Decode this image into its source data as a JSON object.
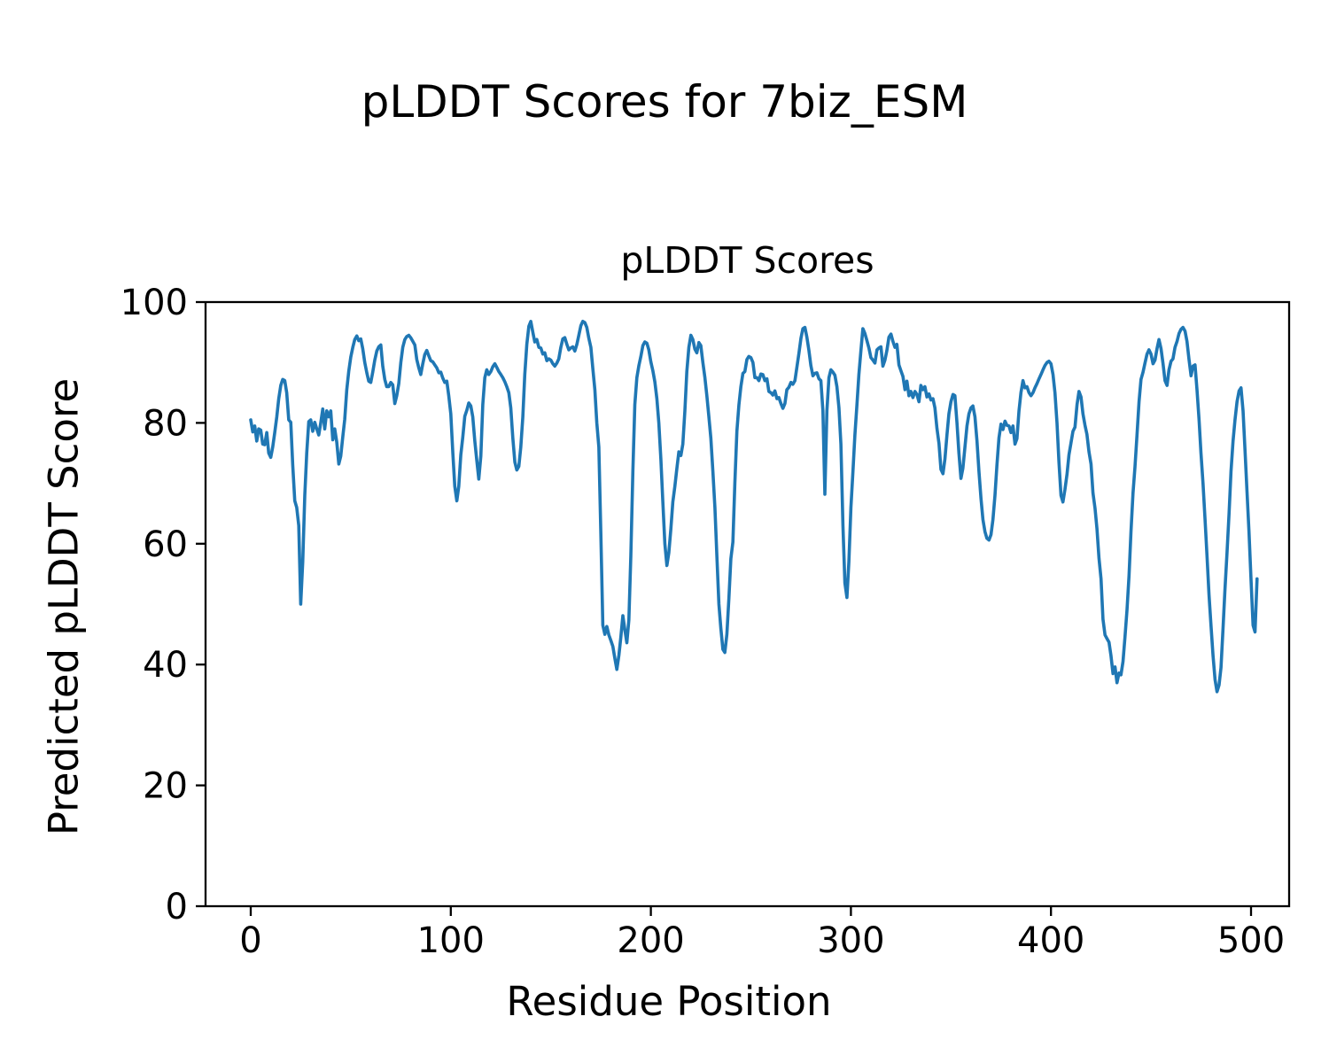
{
  "figure": {
    "suptitle": "pLDDT Scores for 7biz_ESM",
    "axes_title": "pLDDT Scores",
    "xlabel": "Residue Position",
    "ylabel": "Predicted pLDDT Score"
  },
  "colors": {
    "line": "#1f77b4",
    "spine": "#000000",
    "text": "#000000",
    "background": "#ffffff"
  },
  "chart_data": {
    "type": "line",
    "title": "pLDDT Scores",
    "suptitle": "pLDDT Scores for 7biz_ESM",
    "xlabel": "Residue Position",
    "ylabel": "Predicted pLDDT Score",
    "x_ticks": [
      0,
      100,
      200,
      300,
      400,
      500
    ],
    "y_ticks": [
      0,
      20,
      40,
      60,
      80,
      100
    ],
    "ylim": [
      0,
      100
    ],
    "xlim": [
      -23,
      519
    ],
    "grid": false,
    "legend": false,
    "x_start": 0,
    "x_step": 1,
    "series": [
      {
        "name": "pLDDT",
        "color": "#1f77b4",
        "values": [
          80.5,
          78.5,
          79.5,
          77,
          79,
          78.8,
          76.5,
          76.4,
          78.4,
          75,
          74.3,
          76,
          78.4,
          81,
          84,
          86.2,
          87.2,
          87,
          85,
          80.5,
          80.1,
          73,
          67.1,
          66,
          63,
          50,
          57,
          68,
          75,
          80.2,
          80.5,
          78.6,
          80.1,
          79,
          78,
          80,
          82.3,
          79,
          82,
          81,
          82,
          77.2,
          79,
          76.8,
          73.2,
          74.5,
          77.7,
          80.6,
          85.5,
          88.5,
          90.9,
          92.5,
          93.8,
          94.4,
          93.6,
          93.9,
          92.3,
          90,
          88.3,
          86.9,
          86.7,
          88.4,
          90.4,
          91.9,
          92.6,
          92.9,
          89.4,
          87.2,
          86,
          86,
          86.7,
          86.3,
          83.2,
          84.5,
          86.5,
          90,
          92.5,
          93.8,
          94.3,
          94.5,
          94.1,
          93.5,
          92.9,
          90.5,
          89.1,
          88,
          89.8,
          91.3,
          92,
          91.1,
          90.3,
          90.1,
          89.6,
          89.1,
          88.3,
          88.4,
          87.4,
          86.7,
          86.9,
          84.5,
          81.5,
          75,
          69.5,
          67.1,
          69.5,
          74.7,
          77.6,
          81.1,
          82.1,
          83.3,
          82.8,
          81,
          77,
          73.7,
          70.7,
          74.5,
          83,
          87.5,
          88.8,
          88,
          88.5,
          89.3,
          89.8,
          89.2,
          88.5,
          88,
          87.5,
          86.8,
          86,
          85,
          82.5,
          77.5,
          73.5,
          72.2,
          72.8,
          76,
          81,
          88,
          93,
          96,
          96.8,
          95,
          93.4,
          93.8,
          92.5,
          92.4,
          91.4,
          91.6,
          90.3,
          90.6,
          90.4,
          89.8,
          89.4,
          89.9,
          90.6,
          92.5,
          93.9,
          94.1,
          93,
          92.1,
          92.4,
          92.6,
          91.9,
          93,
          94.5,
          96.1,
          96.8,
          96.6,
          95.8,
          94,
          92.5,
          89,
          85.5,
          80,
          76,
          62,
          46.5,
          45,
          46.3,
          44.9,
          44,
          43,
          41,
          39.2,
          41.5,
          44.5,
          48.1,
          45.8,
          43.6,
          47.4,
          58,
          72,
          83,
          87.5,
          89.5,
          91,
          92.8,
          93.4,
          93.2,
          92.1,
          90.1,
          88.6,
          86.8,
          84,
          80,
          74,
          67,
          60,
          56.4,
          58.5,
          62.5,
          66.9,
          69.5,
          72.5,
          75.2,
          74.6,
          76.5,
          82,
          88.5,
          92.5,
          94.5,
          93.8,
          92.2,
          91.6,
          93.3,
          92.8,
          90,
          87.5,
          84.5,
          81,
          77.5,
          72,
          66,
          58,
          50,
          46,
          42.5,
          42,
          45,
          51,
          57.5,
          60.3,
          70,
          78.6,
          83,
          86,
          88.2,
          88.5,
          90.5,
          91,
          90.8,
          90,
          87.5,
          87.5,
          87,
          88.1,
          88,
          87,
          87.3,
          85.2,
          85,
          84.6,
          85.3,
          84,
          84.2,
          83.2,
          82.4,
          83.2,
          85.5,
          85.9,
          86.7,
          86.4,
          87,
          89.2,
          91.5,
          94,
          95.6,
          95.8,
          94.2,
          92,
          89.5,
          87.8,
          88.2,
          88.3,
          87.3,
          87,
          82,
          68.2,
          82,
          87.5,
          88.8,
          88.4,
          87.9,
          86,
          82.5,
          76.5,
          63,
          53.5,
          51.1,
          57,
          66,
          72,
          78,
          83,
          88,
          92,
          95.6,
          94.8,
          93.6,
          92.4,
          90.8,
          90.4,
          89.9,
          92.1,
          92.4,
          92.6,
          89.4,
          90.4,
          92,
          94.2,
          94.7,
          93.5,
          92.5,
          93,
          89.6,
          88.6,
          87.7,
          85.5,
          86.9,
          84.5,
          85.2,
          84.2,
          85.2,
          84.7,
          83.5,
          86.2,
          85.5,
          86,
          84.3,
          84.8,
          83.8,
          84,
          82.5,
          79.1,
          76.6,
          72.3,
          71.6,
          74,
          78,
          81.5,
          83.5,
          84.7,
          84.5,
          80,
          75,
          70.8,
          72.5,
          76,
          79.5,
          81.5,
          82.5,
          82.8,
          81,
          77,
          72,
          67.5,
          64,
          62,
          60.9,
          60.6,
          61.5,
          64,
          68,
          73,
          77.5,
          79.8,
          78.9,
          80.3,
          79.6,
          79.5,
          78.4,
          79.5,
          76.5,
          77.4,
          82,
          85,
          87,
          85.8,
          86,
          85,
          84.5,
          85,
          85.8,
          86.5,
          87.3,
          88,
          88.8,
          89.5,
          90,
          90.2,
          89.8,
          88,
          85,
          80,
          73.5,
          68,
          66.9,
          69,
          71.5,
          74.7,
          76.7,
          78.6,
          79.3,
          83,
          85.2,
          84.3,
          81.5,
          79.6,
          78.1,
          75.2,
          73.2,
          68.4,
          65.9,
          62.5,
          57.6,
          54.2,
          47.5,
          44.9,
          44.3,
          43.7,
          41.5,
          38.5,
          39.6,
          37,
          38.6,
          38.3,
          40.5,
          44.5,
          49,
          54.7,
          62,
          68.4,
          72.7,
          78,
          83.5,
          87.2,
          88.4,
          89.9,
          91.4,
          92.1,
          91.4,
          89.8,
          90.4,
          92.3,
          93.8,
          92.3,
          89.9,
          87,
          86.2,
          88.8,
          90.2,
          90.6,
          92.5,
          93.5,
          94.8,
          95.5,
          95.8,
          95.2,
          93.5,
          90.5,
          87.8,
          89.4,
          89.6,
          85.5,
          80.6,
          75,
          70,
          64,
          58,
          51.5,
          46.5,
          41.5,
          37.5,
          35.5,
          36.6,
          39.5,
          46,
          52.5,
          58.5,
          65,
          72,
          77,
          80.5,
          83.5,
          85.3,
          85.8,
          82,
          75.5,
          68.5,
          62,
          54,
          46.5,
          45.4,
          54.2
        ]
      }
    ]
  }
}
